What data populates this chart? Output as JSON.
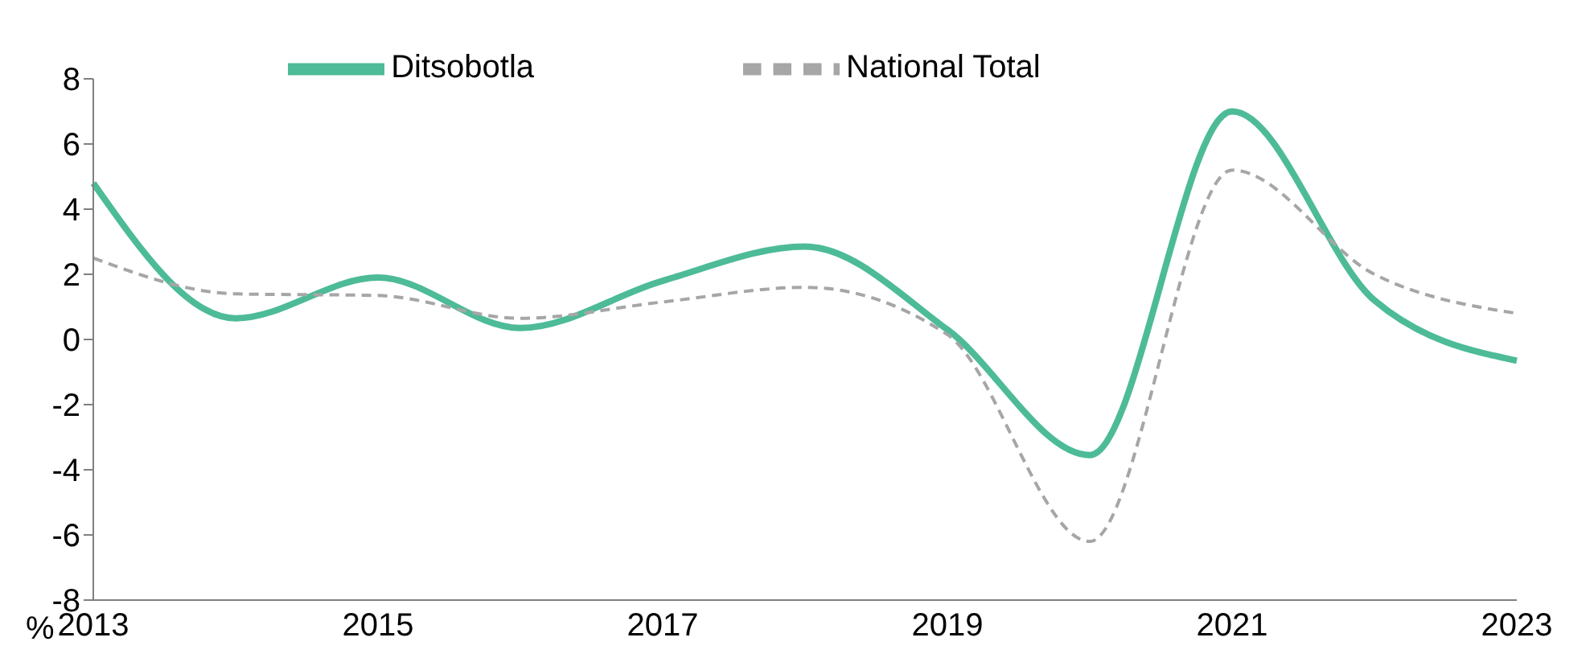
{
  "chart_data": {
    "type": "line",
    "ylabel": "%",
    "categories": [
      "2013",
      null,
      "2015",
      null,
      "2017",
      null,
      "2019",
      null,
      "2021",
      null,
      "2023"
    ],
    "series": [
      {
        "name": "Ditsobotla",
        "color": "#4dbb98",
        "values": [
          4.8,
          0.65,
          1.9,
          0.35,
          1.8,
          2.85,
          0.3,
          -3.55,
          7.0,
          1.2,
          -0.65
        ],
        "line_style": "solid"
      },
      {
        "name": "National Total",
        "color": "#a6a6a6",
        "values": [
          2.5,
          1.4,
          1.35,
          0.65,
          1.15,
          1.6,
          0.15,
          -6.2,
          5.2,
          2.0,
          0.8
        ],
        "line_style": "dashed"
      }
    ],
    "ylim": [
      -8,
      8
    ],
    "yticks": [
      -8,
      -6,
      -4,
      -2,
      0,
      2,
      4,
      6,
      8
    ],
    "legend": "top",
    "marker": "none"
  }
}
